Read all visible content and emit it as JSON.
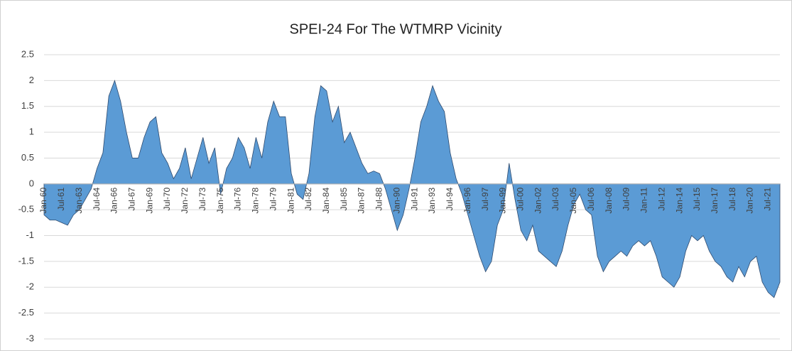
{
  "chart_data": {
    "type": "area",
    "title": "SPEI-24 For The WTMRP Vicinity",
    "categories": [
      "Jan-60",
      null,
      null,
      "Jul-61",
      null,
      null,
      "Jan-63",
      null,
      null,
      "Jul-64",
      null,
      null,
      "Jan-66",
      null,
      null,
      "Jul-67",
      null,
      null,
      "Jan-69",
      null,
      null,
      "Jul-70",
      null,
      null,
      "Jan-72",
      null,
      null,
      "Jul-73",
      null,
      null,
      "Jan-75",
      null,
      null,
      "Jul-76",
      null,
      null,
      "Jan-78",
      null,
      null,
      "Jul-79",
      null,
      null,
      "Jan-81",
      null,
      null,
      "Jul-82",
      null,
      null,
      "Jan-84",
      null,
      null,
      "Jul-85",
      null,
      null,
      "Jan-87",
      null,
      null,
      "Jul-88",
      null,
      null,
      "Jan-90",
      null,
      null,
      "Jul-91",
      null,
      null,
      "Jan-93",
      null,
      null,
      "Jul-94",
      null,
      null,
      "Jan-96",
      null,
      null,
      "Jul-97",
      null,
      null,
      "Jan-99",
      null,
      null,
      "Jul-00",
      null,
      null,
      "Jan-02",
      null,
      null,
      "Jul-03",
      null,
      null,
      "Jan-05",
      null,
      null,
      "Jul-06",
      null,
      null,
      "Jan-08",
      null,
      null,
      "Jul-09",
      null,
      null,
      "Jan-11",
      null,
      null,
      "Jul-12",
      null,
      null,
      "Jan-14",
      null,
      null,
      "Jul-15",
      null,
      null,
      "Jan-17",
      null,
      null,
      "Jul-18",
      null,
      null,
      "Jan-20",
      null,
      null,
      "Jul-21",
      null,
      null
    ],
    "values": [
      -0.6,
      -0.7,
      -0.7,
      -0.75,
      -0.8,
      -0.6,
      -0.5,
      -0.3,
      -0.1,
      0.3,
      0.6,
      1.7,
      2.0,
      1.6,
      1.0,
      0.5,
      0.5,
      0.9,
      1.2,
      1.3,
      0.6,
      0.4,
      0.1,
      0.3,
      0.7,
      0.1,
      0.5,
      0.9,
      0.4,
      0.7,
      -0.2,
      0.3,
      0.5,
      0.9,
      0.7,
      0.3,
      0.9,
      0.5,
      1.2,
      1.6,
      1.3,
      1.3,
      0.2,
      -0.2,
      -0.3,
      0.2,
      1.3,
      1.9,
      1.8,
      1.2,
      1.5,
      0.8,
      1.0,
      0.7,
      0.4,
      0.2,
      0.25,
      0.2,
      -0.1,
      -0.5,
      -0.9,
      -0.6,
      -0.1,
      0.5,
      1.2,
      1.5,
      1.9,
      1.6,
      1.4,
      0.6,
      0.1,
      -0.2,
      -0.6,
      -1.0,
      -1.4,
      -1.7,
      -1.5,
      -0.8,
      -0.5,
      0.4,
      -0.3,
      -0.9,
      -1.1,
      -0.8,
      -1.3,
      -1.4,
      -1.5,
      -1.6,
      -1.3,
      -0.8,
      -0.4,
      -0.2,
      -0.5,
      -0.6,
      -1.4,
      -1.7,
      -1.5,
      -1.4,
      -1.3,
      -1.4,
      -1.2,
      -1.1,
      -1.2,
      -1.1,
      -1.4,
      -1.8,
      -1.9,
      -2.0,
      -1.8,
      -1.3,
      -1.0,
      -1.1,
      -1.0,
      -1.3,
      -1.5,
      -1.6,
      -1.8,
      -1.9,
      -1.6,
      -1.8,
      -1.5,
      -1.4,
      -1.9,
      -2.1,
      -2.2,
      -1.9
    ],
    "color": "#5b9bd5",
    "ylim": [
      -3,
      2.5
    ],
    "yticks": [
      2.5,
      2,
      1.5,
      1,
      0.5,
      0,
      -0.5,
      -1,
      -1.5,
      -2,
      -2.5,
      -3
    ],
    "grid": true
  }
}
